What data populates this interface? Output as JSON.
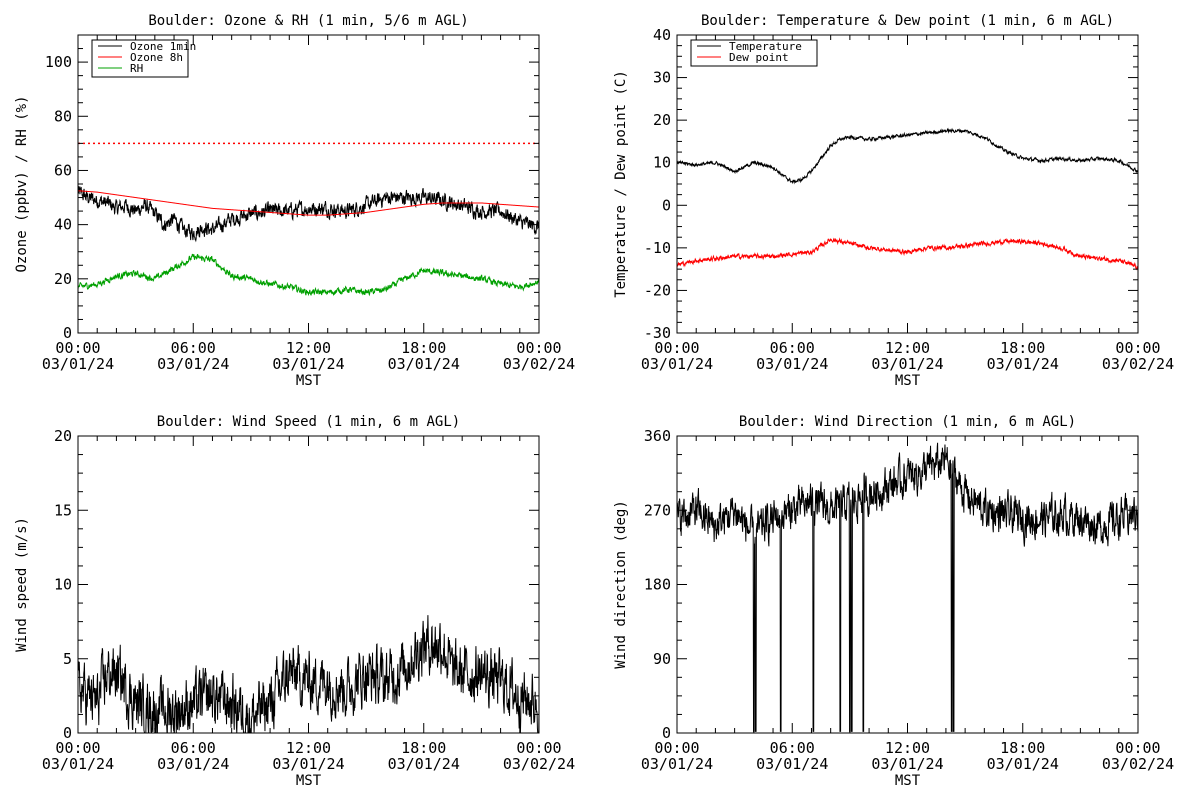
{
  "chart_data": [
    {
      "type": "line",
      "title": "Boulder: Ozone & RH (1 min, 5/6 m AGL)",
      "ylabel": "Ozone (ppbv) / RH (%)",
      "xlabel": "MST",
      "ylim": [
        0,
        110
      ],
      "yticks": [
        0,
        20,
        40,
        60,
        80,
        100
      ],
      "xlim": [
        0,
        24
      ],
      "xticks": [
        {
          "h": 0,
          "time": "00:00",
          "date": "03/01/24"
        },
        {
          "h": 6,
          "time": "06:00",
          "date": "03/01/24"
        },
        {
          "h": 12,
          "time": "12:00",
          "date": "03/01/24"
        },
        {
          "h": 18,
          "time": "18:00",
          "date": "03/01/24"
        },
        {
          "h": 24,
          "time": "00:00",
          "date": "03/02/24"
        }
      ],
      "legend": "top-left",
      "reference_line": {
        "y": 70,
        "color": "#ff0000",
        "style": "dotted"
      },
      "series": [
        {
          "name": "Ozone 1min",
          "color": "#000000",
          "noise": 2.2,
          "points": [
            [
              0,
              52
            ],
            [
              0.5,
              50
            ],
            [
              1,
              49
            ],
            [
              1.5,
              48
            ],
            [
              2,
              46
            ],
            [
              2.5,
              47
            ],
            [
              3,
              45
            ],
            [
              3.5,
              47
            ],
            [
              4,
              44
            ],
            [
              4.5,
              40
            ],
            [
              5,
              42
            ],
            [
              5.5,
              38
            ],
            [
              6,
              37
            ],
            [
              6.5,
              39
            ],
            [
              7,
              38
            ],
            [
              7.5,
              40
            ],
            [
              8,
              42
            ],
            [
              9,
              44
            ],
            [
              10,
              45
            ],
            [
              11,
              45
            ],
            [
              12,
              46
            ],
            [
              13,
              46
            ],
            [
              14,
              45
            ],
            [
              15,
              47
            ],
            [
              16,
              50
            ],
            [
              17,
              50
            ],
            [
              18,
              50
            ],
            [
              19,
              49
            ],
            [
              20,
              47
            ],
            [
              21,
              45
            ],
            [
              22,
              45
            ],
            [
              23,
              41
            ],
            [
              24,
              39
            ]
          ]
        },
        {
          "name": "Ozone 8h",
          "color": "#ff0000",
          "noise": 0,
          "points": [
            [
              0,
              52.5
            ],
            [
              1,
              52
            ],
            [
              2,
              51
            ],
            [
              3,
              50
            ],
            [
              4,
              49
            ],
            [
              5,
              48
            ],
            [
              6,
              47
            ],
            [
              7,
              46
            ],
            [
              8,
              45.5
            ],
            [
              9,
              45
            ],
            [
              10,
              44.5
            ],
            [
              11,
              44
            ],
            [
              12,
              43.5
            ],
            [
              13,
              43.5
            ],
            [
              14,
              44
            ],
            [
              15,
              44.5
            ],
            [
              16,
              45.5
            ],
            [
              17,
              46.5
            ],
            [
              18,
              47.5
            ],
            [
              19,
              48
            ],
            [
              20,
              48
            ],
            [
              21,
              48
            ],
            [
              22,
              47.5
            ],
            [
              23,
              47
            ],
            [
              24,
              46.5
            ]
          ]
        },
        {
          "name": "RH",
          "color": "#00a000",
          "noise": 0.9,
          "points": [
            [
              0,
              17
            ],
            [
              1,
              18
            ],
            [
              2,
              21
            ],
            [
              3,
              22
            ],
            [
              4,
              20
            ],
            [
              5,
              24
            ],
            [
              6,
              28
            ],
            [
              7,
              27
            ],
            [
              8,
              21
            ],
            [
              9,
              20
            ],
            [
              10,
              18
            ],
            [
              11,
              17
            ],
            [
              12,
              15
            ],
            [
              13,
              15
            ],
            [
              14,
              16
            ],
            [
              15,
              15
            ],
            [
              16,
              16
            ],
            [
              17,
              20
            ],
            [
              18,
              23
            ],
            [
              19,
              22
            ],
            [
              20,
              21
            ],
            [
              21,
              20
            ],
            [
              22,
              18
            ],
            [
              23,
              17
            ],
            [
              24,
              19
            ]
          ]
        }
      ]
    },
    {
      "type": "line",
      "title": "Boulder: Temperature & Dew point (1 min, 6 m AGL)",
      "ylabel": "Temperature / Dew point (C)",
      "xlabel": "MST",
      "ylim": [
        -30,
        40
      ],
      "yticks": [
        -30,
        -20,
        -10,
        0,
        10,
        20,
        30,
        40
      ],
      "xlim": [
        0,
        24
      ],
      "xticks": [
        {
          "h": 0,
          "time": "00:00",
          "date": "03/01/24"
        },
        {
          "h": 6,
          "time": "06:00",
          "date": "03/01/24"
        },
        {
          "h": 12,
          "time": "12:00",
          "date": "03/01/24"
        },
        {
          "h": 18,
          "time": "18:00",
          "date": "03/01/24"
        },
        {
          "h": 24,
          "time": "00:00",
          "date": "03/02/24"
        }
      ],
      "legend": "top-left",
      "series": [
        {
          "name": "Temperature",
          "color": "#000000",
          "noise": 0.3,
          "points": [
            [
              0,
              10
            ],
            [
              1,
              9.5
            ],
            [
              2,
              10
            ],
            [
              3,
              8
            ],
            [
              4,
              10
            ],
            [
              5,
              9
            ],
            [
              5.5,
              7
            ],
            [
              6,
              5.5
            ],
            [
              6.5,
              6
            ],
            [
              7,
              8
            ],
            [
              7.5,
              11
            ],
            [
              8,
              14
            ],
            [
              8.5,
              15.5
            ],
            [
              9,
              16
            ],
            [
              10,
              15.5
            ],
            [
              11,
              16
            ],
            [
              12,
              16.5
            ],
            [
              13,
              17
            ],
            [
              14,
              17.5
            ],
            [
              15,
              17.5
            ],
            [
              16,
              16
            ],
            [
              17,
              13
            ],
            [
              18,
              11
            ],
            [
              19,
              10.5
            ],
            [
              20,
              11
            ],
            [
              21,
              10.5
            ],
            [
              22,
              11
            ],
            [
              23,
              10.5
            ],
            [
              24,
              8
            ]
          ]
        },
        {
          "name": "Dew point",
          "color": "#ff0000",
          "noise": 0.4,
          "points": [
            [
              0,
              -14
            ],
            [
              1,
              -13
            ],
            [
              2,
              -12.5
            ],
            [
              3,
              -12
            ],
            [
              4,
              -12
            ],
            [
              5,
              -12
            ],
            [
              6,
              -11.5
            ],
            [
              7,
              -11
            ],
            [
              8,
              -8
            ],
            [
              9,
              -9
            ],
            [
              10,
              -10
            ],
            [
              11,
              -10.5
            ],
            [
              12,
              -11
            ],
            [
              13,
              -10
            ],
            [
              14,
              -10
            ],
            [
              15,
              -9.5
            ],
            [
              16,
              -9
            ],
            [
              17,
              -8.5
            ],
            [
              18,
              -8.5
            ],
            [
              19,
              -9
            ],
            [
              20,
              -10
            ],
            [
              21,
              -12
            ],
            [
              22,
              -12.5
            ],
            [
              23,
              -13
            ],
            [
              24,
              -14.5
            ]
          ]
        }
      ]
    },
    {
      "type": "line",
      "title": "Boulder: Wind Speed (1 min, 6 m AGL)",
      "ylabel": "Wind speed (m/s)",
      "xlabel": "MST",
      "ylim": [
        0,
        20
      ],
      "yticks": [
        0,
        5,
        10,
        15,
        20
      ],
      "xlim": [
        0,
        24
      ],
      "xticks": [
        {
          "h": 0,
          "time": "00:00",
          "date": "03/01/24"
        },
        {
          "h": 6,
          "time": "06:00",
          "date": "03/01/24"
        },
        {
          "h": 12,
          "time": "12:00",
          "date": "03/01/24"
        },
        {
          "h": 18,
          "time": "18:00",
          "date": "03/01/24"
        },
        {
          "h": 24,
          "time": "00:00",
          "date": "03/02/24"
        }
      ],
      "legend": "none",
      "series": [
        {
          "name": "",
          "color": "#000000",
          "noise": 1.5,
          "points": [
            [
              0,
              3
            ],
            [
              1,
              2
            ],
            [
              1.5,
              4
            ],
            [
              2,
              4
            ],
            [
              3,
              2
            ],
            [
              4,
              1.5
            ],
            [
              5,
              1.5
            ],
            [
              6,
              2
            ],
            [
              7,
              2.5
            ],
            [
              8,
              2
            ],
            [
              9,
              1
            ],
            [
              10,
              2
            ],
            [
              10.5,
              3
            ],
            [
              11,
              4
            ],
            [
              12,
              3.5
            ],
            [
              13,
              3.5
            ],
            [
              14,
              3
            ],
            [
              15,
              4
            ],
            [
              16,
              3.5
            ],
            [
              17,
              4.5
            ],
            [
              18,
              6
            ],
            [
              19,
              6
            ],
            [
              19.5,
              4
            ],
            [
              20,
              4
            ],
            [
              21,
              4
            ],
            [
              22,
              3.5
            ],
            [
              23,
              2.5
            ],
            [
              24,
              2
            ]
          ]
        }
      ]
    },
    {
      "type": "line",
      "title": "Boulder: Wind Direction (1 min, 6 m AGL)",
      "ylabel": "Wind direction (deg)",
      "xlabel": "MST",
      "ylim": [
        0,
        360
      ],
      "yticks": [
        0,
        90,
        180,
        270,
        360
      ],
      "xlim": [
        0,
        24
      ],
      "xticks": [
        {
          "h": 0,
          "time": "00:00",
          "date": "03/01/24"
        },
        {
          "h": 6,
          "time": "06:00",
          "date": "03/01/24"
        },
        {
          "h": 12,
          "time": "12:00",
          "date": "03/01/24"
        },
        {
          "h": 18,
          "time": "18:00",
          "date": "03/01/24"
        },
        {
          "h": 24,
          "time": "00:00",
          "date": "03/02/24"
        }
      ],
      "legend": "none",
      "spikes_to_zero_h": [
        4.0,
        4.1,
        5.4,
        7.1,
        8.5,
        9.0,
        9.1,
        9.7,
        14.3,
        14.4
      ],
      "series": [
        {
          "name": "",
          "color": "#000000",
          "noise": 18,
          "points": [
            [
              0,
              260
            ],
            [
              1,
              270
            ],
            [
              2,
              250
            ],
            [
              3,
              270
            ],
            [
              4,
              240
            ],
            [
              5,
              260
            ],
            [
              6,
              270
            ],
            [
              7,
              280
            ],
            [
              8,
              270
            ],
            [
              9,
              280
            ],
            [
              10,
              290
            ],
            [
              11,
              300
            ],
            [
              12,
              310
            ],
            [
              13,
              320
            ],
            [
              14,
              330
            ],
            [
              15,
              290
            ],
            [
              16,
              270
            ],
            [
              17,
              265
            ],
            [
              18,
              260
            ],
            [
              19,
              260
            ],
            [
              20,
              265
            ],
            [
              21,
              260
            ],
            [
              22,
              250
            ],
            [
              23,
              260
            ],
            [
              24,
              265
            ]
          ]
        }
      ]
    }
  ]
}
